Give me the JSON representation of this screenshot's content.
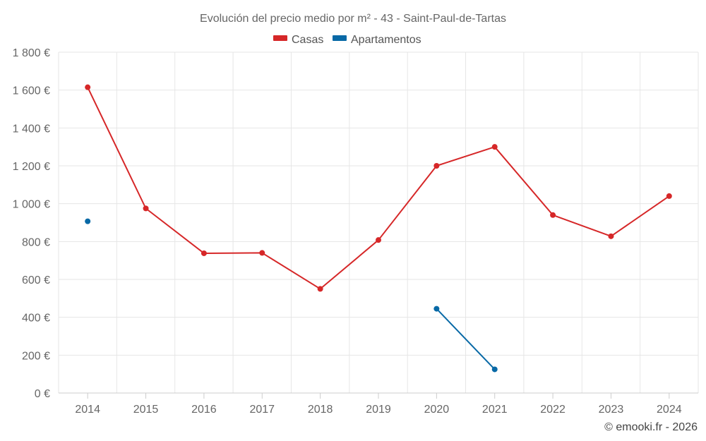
{
  "chart_data": {
    "type": "line",
    "title": "Evolución del precio medio por m² - 43 - Saint-Paul-de-Tartas",
    "categories": [
      "2014",
      "2015",
      "2016",
      "2017",
      "2018",
      "2019",
      "2020",
      "2021",
      "2022",
      "2023",
      "2024"
    ],
    "ylim": [
      0,
      1800
    ],
    "ytick_values": [
      0,
      200,
      400,
      600,
      800,
      1000,
      1200,
      1400,
      1600,
      1800
    ],
    "ytick_labels": [
      "0 €",
      "200 €",
      "400 €",
      "600 €",
      "800 €",
      "1 000 €",
      "1 200 €",
      "1 400 €",
      "1 600 €",
      "1 800 €"
    ],
    "grid": true,
    "legend_position": "top-center",
    "series": [
      {
        "name": "Casas",
        "color": "#d62728",
        "values": [
          1615,
          975,
          738,
          740,
          550,
          808,
          1200,
          1300,
          940,
          828,
          1040
        ]
      },
      {
        "name": "Apartamentos",
        "color": "#0869a6",
        "values": [
          907,
          null,
          null,
          null,
          null,
          null,
          445,
          125,
          null,
          null,
          null
        ]
      }
    ]
  },
  "credit": "© emooki.fr - 2026"
}
